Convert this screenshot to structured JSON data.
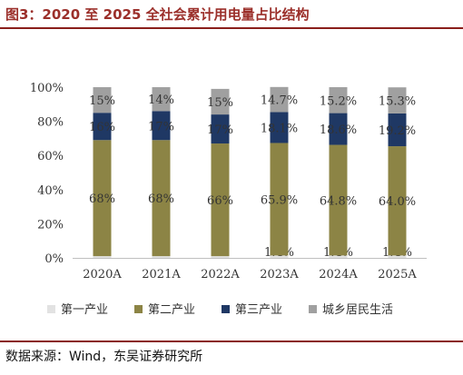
{
  "title": "图3：2020 至 2025 全社会累计用电量占比结构",
  "source": "数据来源：Wind，东吴证券研究所",
  "colors": {
    "primary": "#e2e2e2",
    "secondary": "#8c8445",
    "tertiary": "#1f3864",
    "residential": "#a0a0a0"
  },
  "chart_data": {
    "type": "bar",
    "stacked": true,
    "percent": true,
    "categories": [
      "2020A",
      "2021A",
      "2022A",
      "2023A",
      "2024A",
      "2025A"
    ],
    "ylim": [
      0,
      100
    ],
    "yticks": [
      "0%",
      "20%",
      "40%",
      "60%",
      "80%",
      "100%"
    ],
    "legend_position": "bottom",
    "series": [
      {
        "name": "第一产业",
        "values": [
          1,
          1,
          1,
          1.4,
          1.4,
          1.4
        ],
        "labels": [
          "1%",
          "1%",
          "1%",
          "1.4%",
          "1.4%",
          "1.4%"
        ]
      },
      {
        "name": "第二产业",
        "values": [
          68,
          68,
          66,
          65.9,
          64.8,
          64.0
        ],
        "labels": [
          "68%",
          "68%",
          "66%",
          "65.9%",
          "64.8%",
          "64.0%"
        ]
      },
      {
        "name": "第三产业",
        "values": [
          16,
          17,
          17,
          18.1,
          18.6,
          19.2
        ],
        "labels": [
          "16%",
          "17%",
          "17%",
          "18.1%",
          "18.6%",
          "19.2%"
        ]
      },
      {
        "name": "城乡居民生活",
        "values": [
          15,
          14,
          15,
          14.7,
          15.2,
          15.3
        ],
        "labels": [
          "15%",
          "14%",
          "15%",
          "14.7%",
          "15.2%",
          "15.3%"
        ]
      }
    ]
  }
}
